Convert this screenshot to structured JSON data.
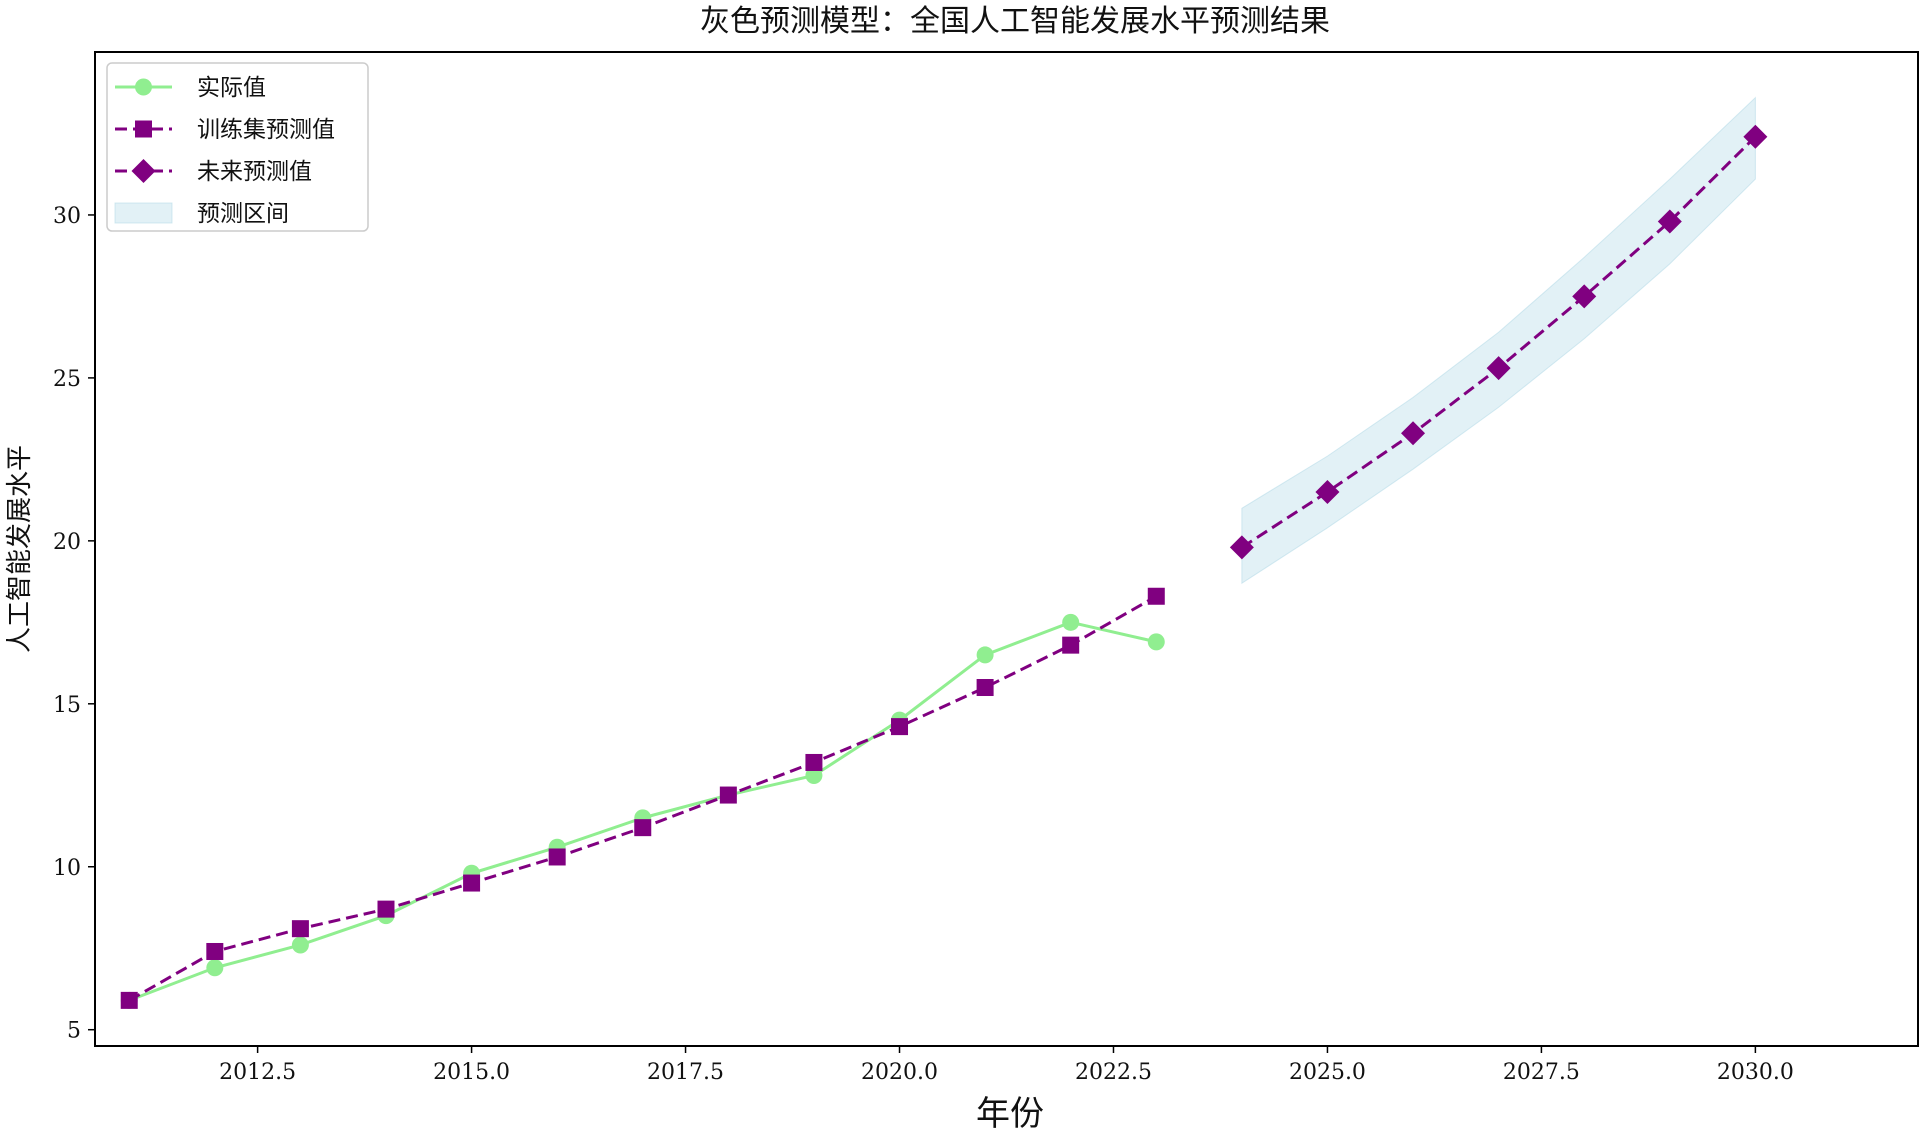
{
  "chart_data": {
    "type": "line",
    "title": "灰色预测模型：全国人工智能发展水平预测结果",
    "xlabel": "年份",
    "ylabel": "人工智能发展水平",
    "xlim": [
      2010.6,
      2031.9
    ],
    "ylim": [
      4.5,
      35
    ],
    "xticks": [
      2012.5,
      2015.0,
      2017.5,
      2020.0,
      2022.5,
      2025.0,
      2027.5,
      2030.0
    ],
    "xtick_labels": [
      "2012.5",
      "2015.0",
      "2017.5",
      "2020.0",
      "2022.5",
      "2025.0",
      "2027.5",
      "2030.0"
    ],
    "yticks": [
      5,
      10,
      15,
      20,
      25,
      30
    ],
    "ytick_labels": [
      "5",
      "10",
      "15",
      "20",
      "25",
      "30"
    ],
    "grid": false,
    "legend_position": "top-left",
    "series": [
      {
        "name": "实际值",
        "style": "solid",
        "marker": "circle",
        "color": "#90EE90",
        "x": [
          2011,
          2012,
          2013,
          2014,
          2015,
          2016,
          2017,
          2018,
          2019,
          2020,
          2021,
          2022,
          2023
        ],
        "y": [
          5.9,
          6.9,
          7.6,
          8.5,
          9.8,
          10.6,
          11.5,
          12.2,
          12.8,
          14.5,
          16.5,
          17.5,
          16.9
        ]
      },
      {
        "name": "训练集预测值",
        "style": "dashed",
        "marker": "square",
        "color": "#800080",
        "x": [
          2011,
          2012,
          2013,
          2014,
          2015,
          2016,
          2017,
          2018,
          2019,
          2020,
          2021,
          2022,
          2023
        ],
        "y": [
          5.9,
          7.4,
          8.1,
          8.7,
          9.5,
          10.3,
          11.2,
          12.2,
          13.2,
          14.3,
          15.5,
          16.8,
          18.3
        ]
      },
      {
        "name": "未来预测值",
        "style": "dashed",
        "marker": "diamond",
        "color": "#800080",
        "x": [
          2024,
          2025,
          2026,
          2027,
          2028,
          2029,
          2030
        ],
        "y": [
          19.8,
          21.5,
          23.3,
          25.3,
          27.5,
          29.8,
          32.4
        ]
      }
    ],
    "interval": {
      "name": "预测区间",
      "color": "#ADD8E6",
      "x": [
        2024,
        2025,
        2026,
        2027,
        2028,
        2029,
        2030
      ],
      "lower": [
        18.7,
        20.4,
        22.2,
        24.1,
        26.2,
        28.5,
        31.1
      ],
      "upper": [
        21.0,
        22.6,
        24.4,
        26.4,
        28.7,
        31.1,
        33.6
      ]
    }
  }
}
